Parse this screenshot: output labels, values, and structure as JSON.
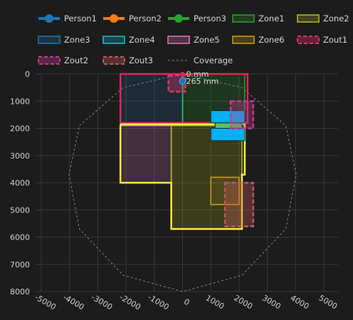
{
  "chart_data": {
    "type": "scatter",
    "xlim": [
      -5200,
      5500
    ],
    "ylim": [
      8000,
      0
    ],
    "x_ticks": [
      -5000,
      -4000,
      -3000,
      -2000,
      -1000,
      0,
      1000,
      2000,
      3000,
      4000,
      5000
    ],
    "y_ticks": [
      0,
      1000,
      2000,
      3000,
      4000,
      5000,
      6000,
      7000,
      8000
    ],
    "grid": true,
    "legend_position": "top",
    "legend": [
      {
        "name": "Person1",
        "color": "#1f77b4",
        "style": "marker-line"
      },
      {
        "name": "Person2",
        "color": "#ff7f0e",
        "style": "marker-line"
      },
      {
        "name": "Person3",
        "color": "#2ca02c",
        "style": "marker-line"
      },
      {
        "name": "Zone1",
        "color": "#2ca02c",
        "style": "zone"
      },
      {
        "name": "Zone2",
        "color": "#bcbd22",
        "style": "zone"
      },
      {
        "name": "Zone3",
        "color": "#1f77b4",
        "style": "zone"
      },
      {
        "name": "Zone4",
        "color": "#17becf",
        "style": "zone"
      },
      {
        "name": "Zone5",
        "color": "#e377c2",
        "style": "zone"
      },
      {
        "name": "Zone6",
        "color": "#d4a017",
        "style": "zone"
      },
      {
        "name": "Zout1",
        "color": "#e0356b",
        "style": "zout"
      },
      {
        "name": "Zout2",
        "color": "#c23b8f",
        "style": "zout"
      },
      {
        "name": "Zout3",
        "color": "#c05a5a",
        "style": "zout"
      },
      {
        "name": "Coverage",
        "color": "#888888",
        "style": "dotted"
      }
    ],
    "coverage": {
      "x": [
        0,
        2100,
        3650,
        4020,
        3650,
        2100,
        0,
        -2100,
        -3650,
        -4020,
        -3650,
        -2100,
        0
      ],
      "y": [
        0,
        500,
        1900,
        3700,
        5700,
        7400,
        8000,
        7400,
        5700,
        3700,
        1900,
        500,
        0
      ]
    },
    "zones": [
      {
        "name": "Zone3",
        "x": [
          -2200,
          0,
          0,
          -2200
        ],
        "y": [
          0,
          0,
          1800,
          1800
        ],
        "fill": "#1f77b4",
        "fill_opacity": 0.18,
        "stroke": "#1f77b4"
      },
      {
        "name": "Zone1",
        "x": [
          0,
          2200,
          2200,
          0
        ],
        "y": [
          0,
          0,
          1800,
          1800
        ],
        "fill": "#2ca02c",
        "fill_opacity": 0.2,
        "stroke": "#2ca02c"
      },
      {
        "name": "Zone5",
        "x": [
          -2200,
          -400,
          -400,
          -2200
        ],
        "y": [
          1900,
          1900,
          4000,
          4000
        ],
        "fill": "#e377c2",
        "fill_opacity": 0.2,
        "stroke": "#e39a9a"
      },
      {
        "name": "Zone2",
        "x": [
          -400,
          2100,
          2100,
          -400
        ],
        "y": [
          1900,
          1900,
          5700,
          5700
        ],
        "fill": "#bcbd22",
        "fill_opacity": 0.2,
        "stroke": "#bcbd22"
      },
      {
        "name": "Zone6",
        "x": [
          1000,
          2000,
          2000,
          1000
        ],
        "y": [
          3800,
          3800,
          4800,
          4800
        ],
        "fill": "#d4a017",
        "fill_opacity": 0.12,
        "stroke": "#d4a017"
      }
    ],
    "room_outlines": [
      {
        "name": "room-outline-upper",
        "color": "#e0245e",
        "x": [
          -2200,
          2300,
          2300,
          -2200,
          -2200
        ],
        "y": [
          0,
          0,
          1800,
          1800,
          0
        ]
      },
      {
        "name": "room-outline-lower",
        "color": "#ffeb3b",
        "x": [
          -2200,
          2200,
          2200,
          2100,
          2100,
          -400,
          -400,
          -2200,
          -2200
        ],
        "y": [
          1850,
          1850,
          3700,
          3700,
          5700,
          5700,
          4000,
          4000,
          1850
        ]
      }
    ],
    "zouts": [
      {
        "name": "Zout1",
        "x": [
          -500,
          100,
          100,
          -500
        ],
        "y": [
          50,
          50,
          650,
          650
        ],
        "color": "#e0356b"
      },
      {
        "name": "Zout2",
        "x": [
          1700,
          2500,
          2500,
          1700
        ],
        "y": [
          1000,
          1000,
          2000,
          2000
        ],
        "color": "#c23b8f"
      },
      {
        "name": "Zout3",
        "x": [
          1500,
          2500,
          2500,
          1500
        ],
        "y": [
          4000,
          4000,
          5600,
          5600
        ],
        "color": "#c05a5a"
      }
    ],
    "doors": [
      {
        "name": "door-block-top",
        "x": [
          1000,
          2200,
          2200,
          1000
        ],
        "y": [
          1350,
          1350,
          1800,
          1800
        ],
        "fill": "#00b0f0"
      },
      {
        "name": "door-block-bottom",
        "x": [
          1000,
          2200,
          2200,
          1000
        ],
        "y": [
          2000,
          2000,
          2450,
          2450
        ],
        "fill": "#00b0f0"
      },
      {
        "name": "door-strip",
        "x": [
          1150,
          2100,
          2100,
          1150
        ],
        "y": [
          1800,
          1800,
          2000,
          2000
        ],
        "fill": "#5fbf5f"
      }
    ],
    "sensor_line": {
      "x": [
        0,
        0
      ],
      "y": [
        0,
        1800
      ],
      "color": "#2bbd7e"
    },
    "sensor_origin": {
      "x": 0,
      "y": 0,
      "color": "#e0245e"
    },
    "persons": [
      {
        "name": "Person1",
        "x": 0,
        "y": 265,
        "color": "#1f77b4"
      }
    ],
    "annotations": [
      {
        "text": "0 mm",
        "x": 0,
        "y": 0
      },
      {
        "text": "265 mm",
        "x": 0,
        "y": 265
      }
    ]
  }
}
